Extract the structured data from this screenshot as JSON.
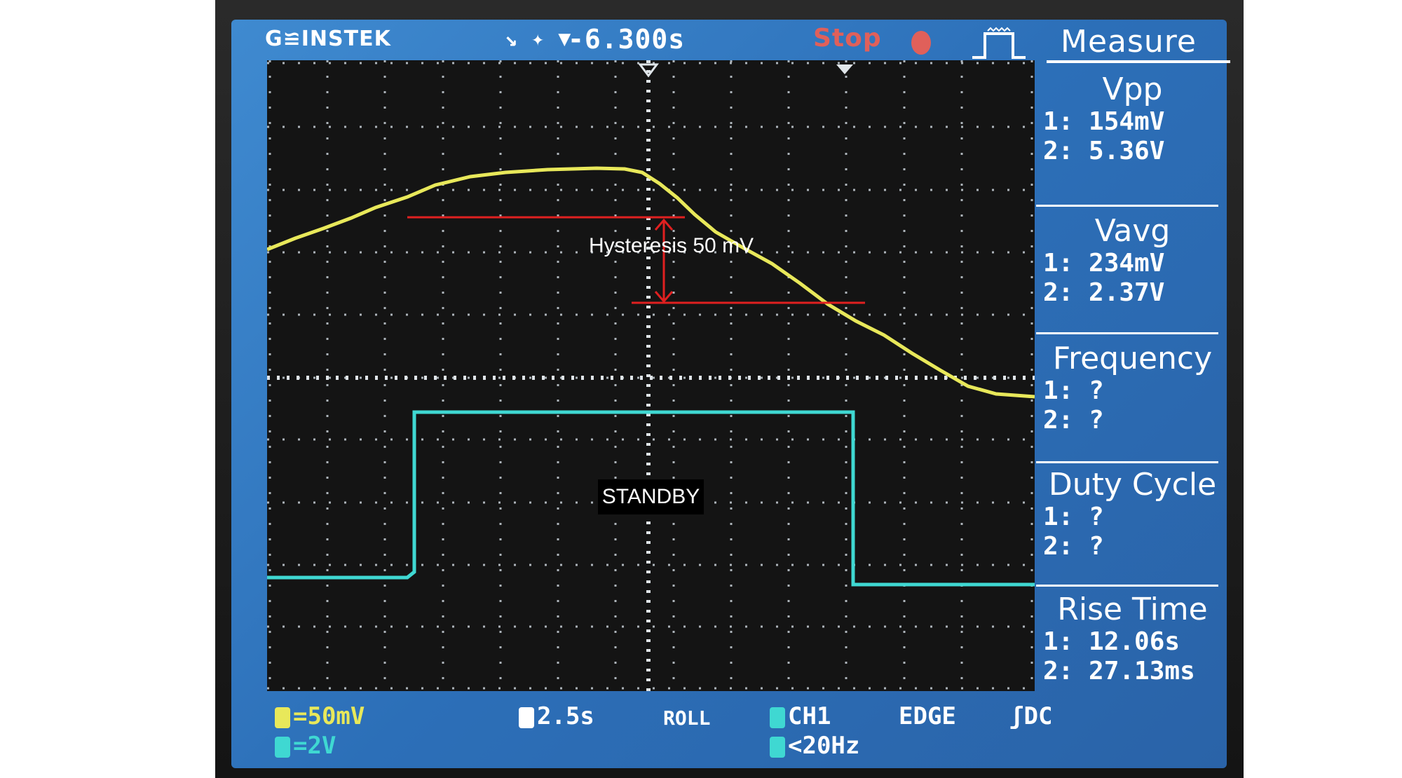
{
  "header": {
    "brand": "G≌INSTEK",
    "trigger_arrows": "↘ ✦ ▼",
    "time_offset": "-6.300s",
    "status": "Stop",
    "measure_title": "Measure"
  },
  "measure": [
    {
      "label": "Vpp",
      "ch1": "1: 154mV",
      "ch2": "2: 5.36V"
    },
    {
      "label": "Vavg",
      "ch1": "1: 234mV",
      "ch2": "2: 2.37V"
    },
    {
      "label": "Frequency",
      "ch1": "1:    ?",
      "ch2": "2:    ?"
    },
    {
      "label": "Duty Cycle",
      "ch1": "1:    ?",
      "ch2": "2:    ?"
    },
    {
      "label": "Rise Time",
      "ch1": "1: 12.06s",
      "ch2": "2: 27.13ms"
    }
  ],
  "footer": {
    "ch1_scale": "=50mV",
    "ch2_scale": "=2V",
    "timebase": "2.5s",
    "mode": "ROLL",
    "trigger_source": "CH1",
    "trigger_type": "EDGE",
    "coupling": "DC",
    "filter": "<20Hz"
  },
  "annotations": {
    "hysteresis": "Hysteresis 50 mV",
    "standby": "STANDBY"
  },
  "colors": {
    "ch1": "#e8e85a",
    "ch2": "#3fd8d2",
    "annotation": "#e02020",
    "screen": "#2f76c0"
  },
  "icons": {
    "stop": "stop-dot-icon",
    "trigger": "trigger-waveform-icon",
    "timebase": "timebase-icon"
  }
}
